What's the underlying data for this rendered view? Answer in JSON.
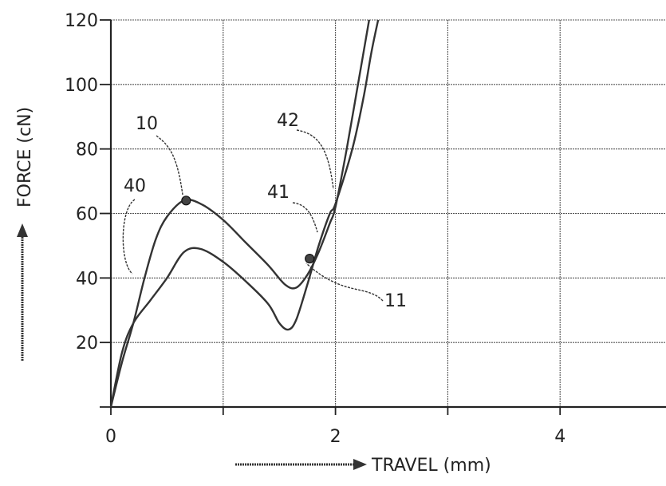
{
  "chart_data": {
    "type": "line",
    "xlabel": "TRAVEL (mm)",
    "ylabel": "FORCE (cN)",
    "xlim": [
      0,
      5
    ],
    "ylim": [
      0,
      120
    ],
    "x_ticks": [
      0,
      2,
      4
    ],
    "y_ticks": [
      20,
      40,
      60,
      80,
      100,
      120
    ],
    "grid": true,
    "series": [
      {
        "name": "40",
        "color": "#333333",
        "points": [
          [
            0,
            0
          ],
          [
            0.1,
            14
          ],
          [
            0.2,
            26
          ],
          [
            0.3,
            40
          ],
          [
            0.4,
            52
          ],
          [
            0.5,
            59
          ],
          [
            0.65,
            64
          ],
          [
            0.8,
            63
          ],
          [
            1.0,
            58
          ],
          [
            1.2,
            51
          ],
          [
            1.4,
            44
          ],
          [
            1.55,
            38
          ],
          [
            1.65,
            37
          ],
          [
            1.75,
            41
          ],
          [
            1.85,
            48
          ],
          [
            1.95,
            57
          ],
          [
            2.0,
            62
          ],
          [
            2.1,
            80
          ],
          [
            2.2,
            100
          ],
          [
            2.3,
            120
          ]
        ]
      },
      {
        "name": "41",
        "color": "#333333",
        "points": [
          [
            0,
            0
          ],
          [
            0.1,
            17
          ],
          [
            0.2,
            26
          ],
          [
            0.35,
            33
          ],
          [
            0.5,
            40
          ],
          [
            0.65,
            48
          ],
          [
            0.8,
            49
          ],
          [
            1.0,
            45
          ],
          [
            1.2,
            39
          ],
          [
            1.4,
            32
          ],
          [
            1.5,
            26
          ],
          [
            1.58,
            24
          ],
          [
            1.65,
            27
          ],
          [
            1.75,
            38
          ],
          [
            1.85,
            50
          ],
          [
            1.95,
            60
          ],
          [
            2.0,
            63
          ],
          [
            2.15,
            80
          ],
          [
            2.25,
            96
          ],
          [
            2.32,
            110
          ],
          [
            2.38,
            120
          ]
        ]
      }
    ],
    "markers": [
      {
        "label": "10",
        "x": 0.67,
        "y": 64
      },
      {
        "label": "11",
        "x": 1.77,
        "y": 46
      }
    ],
    "reference_labels": [
      "10",
      "40",
      "42",
      "41",
      "11"
    ]
  }
}
